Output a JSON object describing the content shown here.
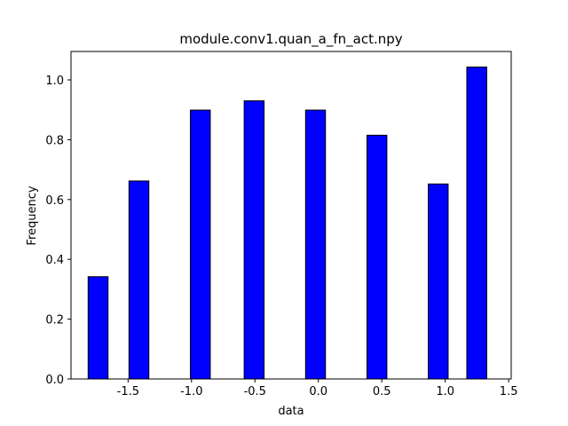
{
  "chart_data": {
    "type": "bar",
    "title": "module.conv1.quan_a_fn_act.npy",
    "xlabel": "data",
    "ylabel": "Frequency",
    "xlim": [
      -1.95,
      1.52
    ],
    "ylim": [
      0,
      1.095
    ],
    "bar_color": "#0000ff",
    "edge_color": "#000000",
    "x_ticks": [
      -1.5,
      -1.0,
      -0.5,
      0.0,
      0.5,
      1.0,
      1.5
    ],
    "x_tick_labels": [
      "-1.5",
      "-1.0",
      "-0.5",
      "0.0",
      "0.5",
      "1.0",
      "1.5"
    ],
    "y_ticks": [
      0.0,
      0.2,
      0.4,
      0.6,
      0.8,
      1.0
    ],
    "y_tick_labels": [
      "0.0",
      "0.2",
      "0.4",
      "0.6",
      "0.8",
      "1.0"
    ],
    "bars": [
      {
        "left": -1.815,
        "right": -1.658,
        "value": 0.342
      },
      {
        "left": -1.493,
        "right": -1.336,
        "value": 0.662
      },
      {
        "left": -1.009,
        "right": -0.852,
        "value": 0.899
      },
      {
        "left": -0.585,
        "right": -0.428,
        "value": 0.93
      },
      {
        "left": -0.101,
        "right": 0.056,
        "value": 0.899
      },
      {
        "left": 0.383,
        "right": 0.54,
        "value": 0.815
      },
      {
        "left": 0.866,
        "right": 1.023,
        "value": 0.652
      },
      {
        "left": 1.17,
        "right": 1.327,
        "value": 1.043
      }
    ]
  }
}
